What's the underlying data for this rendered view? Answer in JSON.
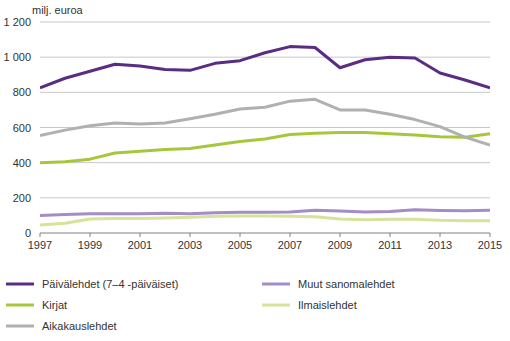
{
  "chart_data": {
    "type": "line",
    "y_label": "milj. euroa",
    "x": [
      1997,
      1998,
      1999,
      2000,
      2001,
      2002,
      2003,
      2004,
      2005,
      2006,
      2007,
      2008,
      2009,
      2010,
      2011,
      2012,
      2013,
      2014,
      2015
    ],
    "xlim": [
      1997,
      2015
    ],
    "xticks": [
      1997,
      1999,
      2001,
      2003,
      2005,
      2007,
      2009,
      2011,
      2013,
      2015
    ],
    "ylim": [
      0,
      1200
    ],
    "yticks": [
      0,
      200,
      400,
      600,
      800,
      {
        "value": 1000,
        "label": "1 000"
      },
      {
        "value": 1200,
        "label": "1 200"
      }
    ],
    "grid": true,
    "legend": "bottom",
    "series": [
      {
        "name": "Päivälehdet (7–4 -päiväiset)",
        "color": "#5b2c83",
        "values": [
          825,
          880,
          920,
          960,
          950,
          930,
          925,
          965,
          980,
          1025,
          1060,
          1055,
          940,
          985,
          1000,
          995,
          910,
          870,
          825
        ]
      },
      {
        "name": "Muut sanomalehdet",
        "color": "#a48cc4",
        "values": [
          100,
          105,
          110,
          110,
          110,
          112,
          110,
          115,
          118,
          118,
          120,
          130,
          125,
          120,
          122,
          132,
          128,
          126,
          130
        ]
      },
      {
        "name": "Kirjat",
        "color": "#a8c63c",
        "values": [
          400,
          405,
          420,
          455,
          465,
          475,
          480,
          500,
          520,
          535,
          560,
          568,
          572,
          572,
          565,
          558,
          548,
          545,
          565
        ]
      },
      {
        "name": "Ilmaislehdet",
        "color": "#d7e39b",
        "values": [
          45,
          55,
          80,
          82,
          82,
          85,
          90,
          95,
          97,
          97,
          95,
          92,
          80,
          75,
          78,
          78,
          72,
          70,
          70
        ]
      },
      {
        "name": "Aikakauslehdet",
        "color": "#b0b0b0",
        "values": [
          555,
          585,
          610,
          625,
          620,
          625,
          650,
          675,
          705,
          715,
          750,
          760,
          700,
          700,
          675,
          645,
          605,
          545,
          500
        ]
      }
    ]
  }
}
